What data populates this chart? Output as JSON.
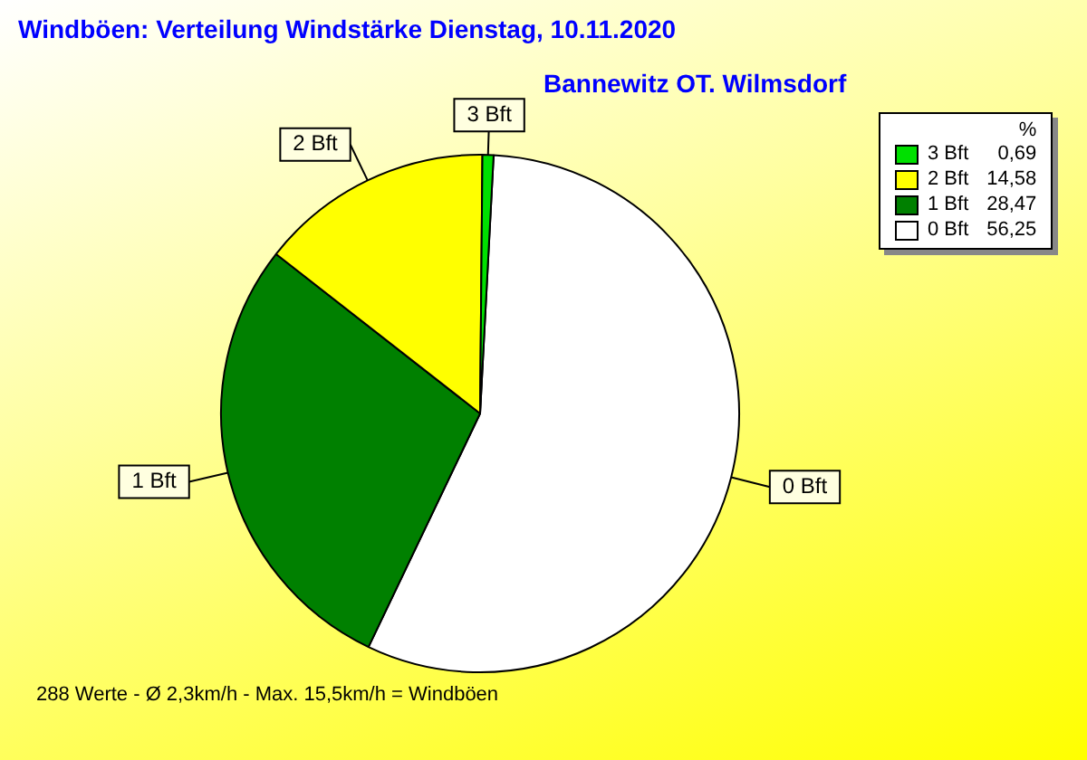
{
  "chart_data": {
    "type": "pie",
    "title": "Windböen: Verteilung Windstärke  Dienstag, 10.11.2020",
    "subtitle": "Bannewitz OT. Wilmsdorf",
    "categories": [
      "0 Bft",
      "1 Bft",
      "2 Bft",
      "3 Bft"
    ],
    "values": [
      56.25,
      28.47,
      14.58,
      0.69
    ],
    "value_labels": [
      "56,25",
      "28,47",
      "14,58",
      "0,69"
    ],
    "colors": [
      "#ffffff",
      "#008000",
      "#ffff00",
      "#00e000"
    ],
    "legend": "top right",
    "legend_title": "%",
    "annotations": [
      "288 Werte   -   Ø 2,3km/h   -   Max. 15,5km/h = Windböen"
    ]
  }
}
